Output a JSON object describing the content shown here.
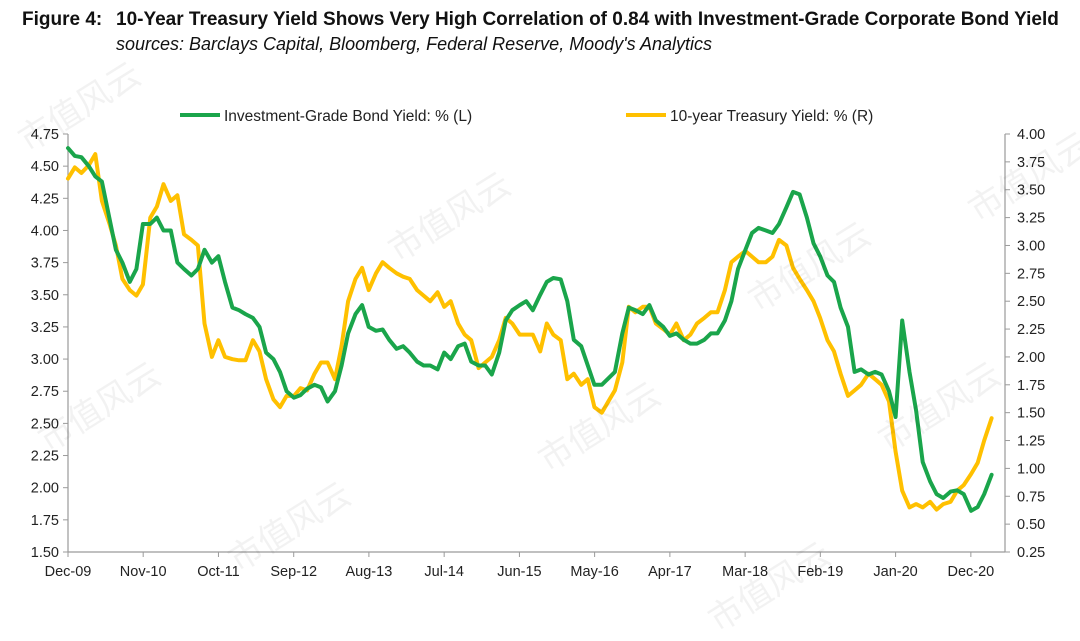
{
  "figure": {
    "label": "Figure 4:",
    "title": "10-Year Treasury Yield Shows Very High Correlation of 0.84 with Investment-Grade Corporate Bond Yield",
    "subtitle": "sources: Barclays Capital, Bloomberg, Federal Reserve, Moody's Analytics"
  },
  "watermark": "市值风云",
  "colors": {
    "ig": "#1aa54b",
    "treasury": "#ffc000",
    "axis": "#9a9a9a",
    "text": "#222222"
  },
  "chart_data": {
    "type": "line",
    "title": "10-Year Treasury Yield Shows Very High Correlation of 0.84 with Investment-Grade Corporate Bond Yield",
    "x_range": [
      2009.917,
      2021.333
    ],
    "x_ticks": [
      {
        "label": "Dec-09",
        "t": 2009.917
      },
      {
        "label": "Nov-10",
        "t": 2010.833
      },
      {
        "label": "Oct-11",
        "t": 2011.75
      },
      {
        "label": "Sep-12",
        "t": 2012.667
      },
      {
        "label": "Aug-13",
        "t": 2013.583
      },
      {
        "label": "Jul-14",
        "t": 2014.5
      },
      {
        "label": "Jun-15",
        "t": 2015.417
      },
      {
        "label": "May-16",
        "t": 2016.333
      },
      {
        "label": "Apr-17",
        "t": 2017.25
      },
      {
        "label": "Mar-18",
        "t": 2018.167
      },
      {
        "label": "Feb-19",
        "t": 2019.083
      },
      {
        "label": "Jan-20",
        "t": 2020.0
      },
      {
        "label": "Dec-20",
        "t": 2020.917
      }
    ],
    "y_left": {
      "min": 1.5,
      "max": 4.75,
      "ticks": [
        "1.50",
        "1.75",
        "2.00",
        "2.25",
        "2.50",
        "2.75",
        "3.00",
        "3.25",
        "3.50",
        "3.75",
        "4.00",
        "4.25",
        "4.50",
        "4.75"
      ]
    },
    "y_right": {
      "min": 0.25,
      "max": 4.0,
      "ticks": [
        "0.25",
        "0.50",
        "0.75",
        "1.00",
        "1.25",
        "1.50",
        "1.75",
        "2.00",
        "2.25",
        "2.50",
        "2.75",
        "3.00",
        "3.25",
        "3.50",
        "3.75",
        "4.00"
      ]
    },
    "series": [
      {
        "name": "Investment-Grade Bond Yield: % (L)",
        "axis": "left",
        "points": [
          [
            2009.917,
            4.64
          ],
          [
            2010.0,
            4.58
          ],
          [
            2010.08,
            4.57
          ],
          [
            2010.17,
            4.5
          ],
          [
            2010.25,
            4.42
          ],
          [
            2010.33,
            4.38
          ],
          [
            2010.42,
            4.1
          ],
          [
            2010.5,
            3.85
          ],
          [
            2010.58,
            3.75
          ],
          [
            2010.67,
            3.6
          ],
          [
            2010.75,
            3.7
          ],
          [
            2010.83,
            4.05
          ],
          [
            2010.92,
            4.05
          ],
          [
            2011.0,
            4.1
          ],
          [
            2011.08,
            4.0
          ],
          [
            2011.17,
            4.0
          ],
          [
            2011.25,
            3.75
          ],
          [
            2011.33,
            3.7
          ],
          [
            2011.42,
            3.65
          ],
          [
            2011.5,
            3.7
          ],
          [
            2011.58,
            3.85
          ],
          [
            2011.67,
            3.75
          ],
          [
            2011.75,
            3.8
          ],
          [
            2011.83,
            3.6
          ],
          [
            2011.92,
            3.4
          ],
          [
            2012.0,
            3.38
          ],
          [
            2012.08,
            3.35
          ],
          [
            2012.17,
            3.32
          ],
          [
            2012.25,
            3.25
          ],
          [
            2012.33,
            3.05
          ],
          [
            2012.42,
            3.0
          ],
          [
            2012.5,
            2.9
          ],
          [
            2012.58,
            2.75
          ],
          [
            2012.67,
            2.7
          ],
          [
            2012.75,
            2.72
          ],
          [
            2012.83,
            2.77
          ],
          [
            2012.92,
            2.8
          ],
          [
            2013.0,
            2.78
          ],
          [
            2013.08,
            2.67
          ],
          [
            2013.17,
            2.75
          ],
          [
            2013.25,
            2.95
          ],
          [
            2013.33,
            3.2
          ],
          [
            2013.42,
            3.35
          ],
          [
            2013.5,
            3.42
          ],
          [
            2013.58,
            3.25
          ],
          [
            2013.67,
            3.22
          ],
          [
            2013.75,
            3.23
          ],
          [
            2013.83,
            3.15
          ],
          [
            2013.92,
            3.08
          ],
          [
            2014.0,
            3.1
          ],
          [
            2014.08,
            3.05
          ],
          [
            2014.17,
            2.98
          ],
          [
            2014.25,
            2.95
          ],
          [
            2014.33,
            2.95
          ],
          [
            2014.42,
            2.92
          ],
          [
            2014.5,
            3.05
          ],
          [
            2014.58,
            3.0
          ],
          [
            2014.67,
            3.1
          ],
          [
            2014.75,
            3.12
          ],
          [
            2014.83,
            2.98
          ],
          [
            2014.92,
            2.95
          ],
          [
            2015.0,
            2.95
          ],
          [
            2015.08,
            2.88
          ],
          [
            2015.17,
            3.05
          ],
          [
            2015.25,
            3.3
          ],
          [
            2015.33,
            3.38
          ],
          [
            2015.42,
            3.42
          ],
          [
            2015.5,
            3.45
          ],
          [
            2015.58,
            3.38
          ],
          [
            2015.67,
            3.5
          ],
          [
            2015.75,
            3.6
          ],
          [
            2015.83,
            3.63
          ],
          [
            2015.92,
            3.62
          ],
          [
            2016.0,
            3.45
          ],
          [
            2016.08,
            3.15
          ],
          [
            2016.17,
            3.1
          ],
          [
            2016.25,
            2.95
          ],
          [
            2016.33,
            2.8
          ],
          [
            2016.42,
            2.8
          ],
          [
            2016.5,
            2.85
          ],
          [
            2016.58,
            2.9
          ],
          [
            2016.67,
            3.2
          ],
          [
            2016.75,
            3.4
          ],
          [
            2016.83,
            3.38
          ],
          [
            2016.92,
            3.35
          ],
          [
            2017.0,
            3.42
          ],
          [
            2017.08,
            3.3
          ],
          [
            2017.17,
            3.25
          ],
          [
            2017.25,
            3.18
          ],
          [
            2017.33,
            3.2
          ],
          [
            2017.42,
            3.15
          ],
          [
            2017.5,
            3.12
          ],
          [
            2017.58,
            3.12
          ],
          [
            2017.67,
            3.15
          ],
          [
            2017.75,
            3.2
          ],
          [
            2017.83,
            3.2
          ],
          [
            2017.92,
            3.3
          ],
          [
            2018.0,
            3.45
          ],
          [
            2018.08,
            3.7
          ],
          [
            2018.17,
            3.85
          ],
          [
            2018.25,
            3.98
          ],
          [
            2018.33,
            4.02
          ],
          [
            2018.42,
            4.0
          ],
          [
            2018.5,
            3.98
          ],
          [
            2018.58,
            4.05
          ],
          [
            2018.67,
            4.18
          ],
          [
            2018.75,
            4.3
          ],
          [
            2018.83,
            4.28
          ],
          [
            2018.92,
            4.1
          ],
          [
            2019.0,
            3.9
          ],
          [
            2019.08,
            3.8
          ],
          [
            2019.17,
            3.65
          ],
          [
            2019.25,
            3.6
          ],
          [
            2019.33,
            3.4
          ],
          [
            2019.42,
            3.25
          ],
          [
            2019.5,
            2.9
          ],
          [
            2019.58,
            2.92
          ],
          [
            2019.67,
            2.88
          ],
          [
            2019.75,
            2.9
          ],
          [
            2019.83,
            2.88
          ],
          [
            2019.92,
            2.75
          ],
          [
            2020.0,
            2.55
          ],
          [
            2020.08,
            3.3
          ],
          [
            2020.17,
            2.9
          ],
          [
            2020.25,
            2.6
          ],
          [
            2020.33,
            2.2
          ],
          [
            2020.42,
            2.05
          ],
          [
            2020.5,
            1.95
          ],
          [
            2020.58,
            1.92
          ],
          [
            2020.67,
            1.97
          ],
          [
            2020.75,
            1.98
          ],
          [
            2020.83,
            1.95
          ],
          [
            2020.92,
            1.82
          ],
          [
            2021.0,
            1.85
          ],
          [
            2021.08,
            1.95
          ],
          [
            2021.17,
            2.1
          ]
        ]
      },
      {
        "name": "10-year Treasury Yield: % (R)",
        "axis": "right",
        "points": [
          [
            2009.917,
            3.6
          ],
          [
            2010.0,
            3.7
          ],
          [
            2010.08,
            3.65
          ],
          [
            2010.17,
            3.72
          ],
          [
            2010.25,
            3.82
          ],
          [
            2010.33,
            3.4
          ],
          [
            2010.42,
            3.2
          ],
          [
            2010.5,
            3.0
          ],
          [
            2010.58,
            2.7
          ],
          [
            2010.67,
            2.6
          ],
          [
            2010.75,
            2.55
          ],
          [
            2010.83,
            2.65
          ],
          [
            2010.92,
            3.25
          ],
          [
            2011.0,
            3.35
          ],
          [
            2011.08,
            3.55
          ],
          [
            2011.17,
            3.4
          ],
          [
            2011.25,
            3.45
          ],
          [
            2011.33,
            3.1
          ],
          [
            2011.42,
            3.05
          ],
          [
            2011.5,
            3.0
          ],
          [
            2011.58,
            2.3
          ],
          [
            2011.67,
            2.0
          ],
          [
            2011.75,
            2.15
          ],
          [
            2011.83,
            2.0
          ],
          [
            2011.92,
            1.98
          ],
          [
            2012.0,
            1.97
          ],
          [
            2012.08,
            1.97
          ],
          [
            2012.17,
            2.15
          ],
          [
            2012.25,
            2.05
          ],
          [
            2012.33,
            1.8
          ],
          [
            2012.42,
            1.62
          ],
          [
            2012.5,
            1.55
          ],
          [
            2012.58,
            1.65
          ],
          [
            2012.67,
            1.65
          ],
          [
            2012.75,
            1.72
          ],
          [
            2012.83,
            1.7
          ],
          [
            2012.92,
            1.85
          ],
          [
            2013.0,
            1.95
          ],
          [
            2013.08,
            1.95
          ],
          [
            2013.17,
            1.8
          ],
          [
            2013.25,
            2.1
          ],
          [
            2013.33,
            2.5
          ],
          [
            2013.42,
            2.7
          ],
          [
            2013.5,
            2.8
          ],
          [
            2013.58,
            2.6
          ],
          [
            2013.67,
            2.75
          ],
          [
            2013.75,
            2.85
          ],
          [
            2013.83,
            2.8
          ],
          [
            2013.92,
            2.75
          ],
          [
            2014.0,
            2.72
          ],
          [
            2014.08,
            2.7
          ],
          [
            2014.17,
            2.6
          ],
          [
            2014.25,
            2.55
          ],
          [
            2014.33,
            2.5
          ],
          [
            2014.42,
            2.58
          ],
          [
            2014.5,
            2.45
          ],
          [
            2014.58,
            2.5
          ],
          [
            2014.67,
            2.3
          ],
          [
            2014.75,
            2.2
          ],
          [
            2014.83,
            2.15
          ],
          [
            2014.92,
            1.9
          ],
          [
            2015.0,
            1.95
          ],
          [
            2015.08,
            2.0
          ],
          [
            2015.17,
            2.15
          ],
          [
            2015.25,
            2.35
          ],
          [
            2015.33,
            2.3
          ],
          [
            2015.42,
            2.2
          ],
          [
            2015.5,
            2.2
          ],
          [
            2015.58,
            2.2
          ],
          [
            2015.67,
            2.05
          ],
          [
            2015.75,
            2.3
          ],
          [
            2015.83,
            2.2
          ],
          [
            2015.92,
            2.15
          ],
          [
            2016.0,
            1.8
          ],
          [
            2016.08,
            1.85
          ],
          [
            2016.17,
            1.75
          ],
          [
            2016.25,
            1.8
          ],
          [
            2016.33,
            1.55
          ],
          [
            2016.42,
            1.5
          ],
          [
            2016.5,
            1.6
          ],
          [
            2016.58,
            1.7
          ],
          [
            2016.67,
            1.95
          ],
          [
            2016.75,
            2.45
          ],
          [
            2016.83,
            2.4
          ],
          [
            2016.92,
            2.45
          ],
          [
            2017.0,
            2.45
          ],
          [
            2017.08,
            2.3
          ],
          [
            2017.17,
            2.25
          ],
          [
            2017.25,
            2.2
          ],
          [
            2017.33,
            2.3
          ],
          [
            2017.42,
            2.15
          ],
          [
            2017.5,
            2.2
          ],
          [
            2017.58,
            2.3
          ],
          [
            2017.67,
            2.35
          ],
          [
            2017.75,
            2.4
          ],
          [
            2017.83,
            2.4
          ],
          [
            2017.92,
            2.6
          ],
          [
            2018.0,
            2.85
          ],
          [
            2018.08,
            2.9
          ],
          [
            2018.17,
            2.95
          ],
          [
            2018.25,
            2.9
          ],
          [
            2018.33,
            2.85
          ],
          [
            2018.42,
            2.85
          ],
          [
            2018.5,
            2.9
          ],
          [
            2018.58,
            3.05
          ],
          [
            2018.67,
            3.0
          ],
          [
            2018.75,
            2.8
          ],
          [
            2018.83,
            2.7
          ],
          [
            2018.92,
            2.6
          ],
          [
            2019.0,
            2.5
          ],
          [
            2019.08,
            2.35
          ],
          [
            2019.17,
            2.15
          ],
          [
            2019.25,
            2.05
          ],
          [
            2019.33,
            1.85
          ],
          [
            2019.42,
            1.65
          ],
          [
            2019.5,
            1.7
          ],
          [
            2019.58,
            1.75
          ],
          [
            2019.67,
            1.85
          ],
          [
            2019.75,
            1.8
          ],
          [
            2019.83,
            1.75
          ],
          [
            2019.92,
            1.6
          ],
          [
            2020.0,
            1.15
          ],
          [
            2020.08,
            0.8
          ],
          [
            2020.17,
            0.65
          ],
          [
            2020.25,
            0.68
          ],
          [
            2020.33,
            0.65
          ],
          [
            2020.42,
            0.7
          ],
          [
            2020.5,
            0.63
          ],
          [
            2020.58,
            0.68
          ],
          [
            2020.67,
            0.7
          ],
          [
            2020.75,
            0.8
          ],
          [
            2020.83,
            0.85
          ],
          [
            2020.92,
            0.95
          ],
          [
            2021.0,
            1.05
          ],
          [
            2021.08,
            1.25
          ],
          [
            2021.17,
            1.45
          ]
        ]
      }
    ],
    "legend": [
      {
        "label": "Investment-Grade Bond Yield: % (L)",
        "color": "#1aa54b"
      },
      {
        "label": "10-year Treasury Yield: % (R)",
        "color": "#ffc000"
      }
    ]
  }
}
